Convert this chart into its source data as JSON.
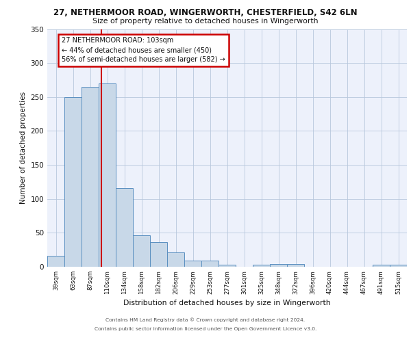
{
  "title1": "27, NETHERMOOR ROAD, WINGERWORTH, CHESTERFIELD, S42 6LN",
  "title2": "Size of property relative to detached houses in Wingerworth",
  "xlabel": "Distribution of detached houses by size in Wingerworth",
  "ylabel": "Number of detached properties",
  "categories": [
    "39sqm",
    "63sqm",
    "87sqm",
    "110sqm",
    "134sqm",
    "158sqm",
    "182sqm",
    "206sqm",
    "229sqm",
    "253sqm",
    "277sqm",
    "301sqm",
    "325sqm",
    "348sqm",
    "372sqm",
    "396sqm",
    "420sqm",
    "444sqm",
    "467sqm",
    "491sqm",
    "515sqm"
  ],
  "values": [
    16,
    250,
    265,
    270,
    116,
    46,
    36,
    21,
    9,
    9,
    3,
    0,
    3,
    4,
    4,
    0,
    0,
    0,
    0,
    3,
    3
  ],
  "bar_color": "#c8d8e8",
  "bar_edge_color": "#5a8fc0",
  "annotation_line1": "27 NETHERMOOR ROAD: 103sqm",
  "annotation_line2": "← 44% of detached houses are smaller (450)",
  "annotation_line3": "56% of semi-detached houses are larger (582) →",
  "annotation_box_color": "#ffffff",
  "annotation_border_color": "#cc0000",
  "footer1": "Contains HM Land Registry data © Crown copyright and database right 2024.",
  "footer2": "Contains public sector information licensed under the Open Government Licence v3.0.",
  "background_color": "#edf1fb",
  "ylim": [
    0,
    350
  ],
  "yticks": [
    0,
    50,
    100,
    150,
    200,
    250,
    300,
    350
  ],
  "red_line_idx": 2.67
}
